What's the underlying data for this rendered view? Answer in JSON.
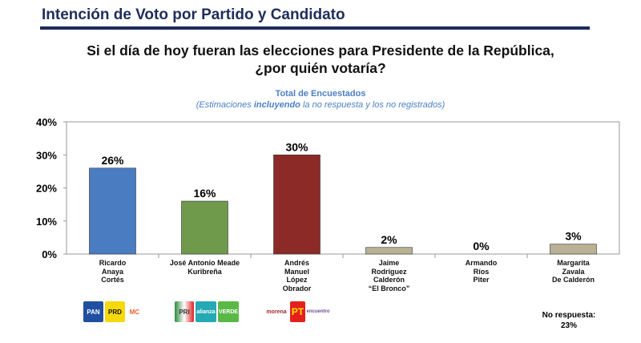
{
  "header": {
    "title": "Intención de Voto por Partido y Candidato",
    "question_line1": "Si el día de hoy fueran las elecciones para Presidente de la República,",
    "question_line2": "¿por quién votaría?",
    "subtitle": "Total de Encuestados",
    "note_pre": "(Estimaciones ",
    "note_bold": "incluyendo",
    "note_post": " la no respuesta y los no registrados)"
  },
  "chart_data": {
    "type": "bar",
    "title": "Si el día de hoy fueran las elecciones para Presidente de la República, ¿por quién votaría?",
    "ylim": [
      0,
      40
    ],
    "yticks": [
      "0%",
      "10%",
      "20%",
      "30%",
      "40%"
    ],
    "categories": [
      [
        "Ricardo",
        "Anaya",
        "Cortés"
      ],
      [
        "José Antonio Meade",
        "Kuribreña"
      ],
      [
        "Andrés",
        "Manuel",
        "López",
        "Obrador"
      ],
      [
        "Jaime",
        "Rodríguez",
        "Calderón",
        "“El Bronco”"
      ],
      [
        "Armando",
        "Ríos",
        "Piter"
      ],
      [
        "Margarita",
        "Zavala",
        "De Calderón"
      ]
    ],
    "values": [
      26,
      16,
      30,
      2,
      0,
      3
    ],
    "labels": [
      "26%",
      "16%",
      "30%",
      "2%",
      "0%",
      "3%"
    ],
    "colors": [
      "#4a7cc2",
      "#6f9a4c",
      "#8b2a26",
      "#b8b193",
      "#b8b193",
      "#b8b193"
    ]
  },
  "logos": {
    "g1": [
      "PAN",
      "PRD",
      "MC"
    ],
    "g2": [
      "PRI",
      "alianza",
      "VERDE"
    ],
    "g3": [
      "morena",
      "PT",
      "encuentro"
    ]
  },
  "no_response": {
    "label": "No respuesta:",
    "value": "23%"
  }
}
